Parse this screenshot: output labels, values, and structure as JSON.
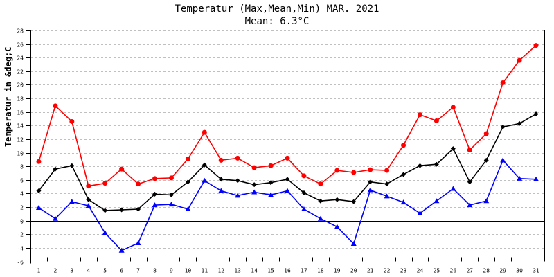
{
  "chart": {
    "title": "Temperatur (Max,Mean,Min) MAR. 2021",
    "subtitle": "Mean: 6.3°C",
    "ylabel": "Temperatur in &deg;C"
  },
  "chart_data": {
    "type": "line",
    "title": "Temperatur (Max,Mean,Min) MAR. 2021",
    "subtitle": "Mean: 6.3°C",
    "xlabel": "",
    "ylabel": "Temperatur in &deg;C",
    "ylim": [
      -6,
      28
    ],
    "yticks": [
      -6,
      -4,
      -2,
      0,
      2,
      4,
      6,
      8,
      10,
      12,
      14,
      16,
      18,
      20,
      22,
      24,
      26,
      28
    ],
    "grid": true,
    "legend": null,
    "categories": [
      "1",
      "2",
      "3",
      "4",
      "5",
      "6",
      "7",
      "8",
      "9",
      "10",
      "11",
      "12",
      "13",
      "14",
      "15",
      "16",
      "17",
      "18",
      "19",
      "20",
      "21",
      "22",
      "23",
      "24",
      "25",
      "26",
      "27",
      "28",
      "29",
      "30",
      "31"
    ],
    "series": [
      {
        "name": "Max",
        "color": "#ff0000",
        "marker": "circle",
        "values": [
          8.7,
          16.9,
          14.6,
          5.1,
          5.5,
          7.6,
          5.4,
          6.2,
          6.3,
          9.1,
          13.0,
          8.9,
          9.2,
          7.8,
          8.1,
          9.2,
          6.6,
          5.4,
          7.4,
          7.1,
          7.5,
          7.4,
          11.1,
          15.6,
          14.7,
          16.7,
          10.4,
          12.8,
          20.3,
          23.6,
          25.8
        ]
      },
      {
        "name": "Mean",
        "color": "#000000",
        "marker": "diamond",
        "values": [
          4.4,
          7.6,
          8.1,
          3.1,
          1.5,
          1.6,
          1.7,
          3.9,
          3.8,
          5.7,
          8.2,
          6.1,
          5.9,
          5.3,
          5.6,
          6.1,
          4.1,
          2.9,
          3.1,
          2.8,
          5.7,
          5.4,
          6.8,
          8.1,
          8.3,
          10.6,
          5.7,
          8.9,
          13.8,
          14.3,
          15.7
        ]
      },
      {
        "name": "Min",
        "color": "#0000ff",
        "marker": "triangle",
        "values": [
          1.9,
          0.3,
          2.8,
          2.2,
          -1.8,
          -4.4,
          -3.3,
          2.3,
          2.4,
          1.7,
          5.9,
          4.4,
          3.7,
          4.2,
          3.8,
          4.4,
          1.7,
          0.3,
          -0.9,
          -3.4,
          4.5,
          3.6,
          2.7,
          1.1,
          2.9,
          4.7,
          2.3,
          2.9,
          8.9,
          6.2,
          6.1
        ]
      }
    ]
  },
  "colors": {
    "grid": "#c0c0c0",
    "axis": "#000000",
    "max": "#ff0000",
    "mean": "#000000",
    "min": "#0000ff"
  }
}
